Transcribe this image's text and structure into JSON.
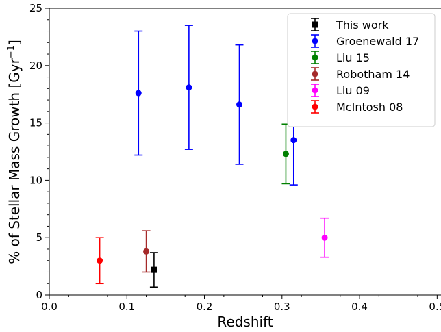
{
  "chart_data": {
    "type": "scatter",
    "xlabel": "Redshift",
    "ylabel": "% of Stellar Mass Growth [Gyr",
    "ylabel_sup": "−1",
    "ylabel_close": "]",
    "xlim": [
      0.0,
      0.5
    ],
    "ylim": [
      0,
      25
    ],
    "xticks": [
      0.0,
      0.1,
      0.2,
      0.3,
      0.4,
      0.5
    ],
    "xtick_labels": [
      "0.0",
      "0.1",
      "0.2",
      "0.3",
      "0.4",
      "0.5"
    ],
    "yticks": [
      0,
      5,
      10,
      15,
      20,
      25
    ],
    "ytick_labels": [
      "0",
      "5",
      "10",
      "15",
      "20",
      "25"
    ],
    "grid": false,
    "legend_position": "top-right",
    "series": [
      {
        "name": "This work",
        "color": "#000000",
        "marker": "square",
        "points": [
          {
            "x": 0.135,
            "y": 2.2,
            "ylo": 0.7,
            "yhi": 3.7
          }
        ]
      },
      {
        "name": "Groenewald 17",
        "color": "#0000ff",
        "marker": "circle",
        "points": [
          {
            "x": 0.115,
            "y": 17.6,
            "ylo": 12.2,
            "yhi": 23.0
          },
          {
            "x": 0.18,
            "y": 18.1,
            "ylo": 12.7,
            "yhi": 23.5
          },
          {
            "x": 0.245,
            "y": 16.6,
            "ylo": 11.4,
            "yhi": 21.8
          },
          {
            "x": 0.315,
            "y": 13.5,
            "ylo": 9.6,
            "yhi": 17.5
          }
        ]
      },
      {
        "name": "Liu 15",
        "color": "#008000",
        "marker": "circle",
        "points": [
          {
            "x": 0.305,
            "y": 12.3,
            "ylo": 9.7,
            "yhi": 14.9
          }
        ]
      },
      {
        "name": "Robotham 14",
        "color": "#a52a2a",
        "marker": "circle",
        "points": [
          {
            "x": 0.125,
            "y": 3.8,
            "ylo": 2.0,
            "yhi": 5.6
          }
        ]
      },
      {
        "name": "Liu 09",
        "color": "#ff00ff",
        "marker": "circle",
        "points": [
          {
            "x": 0.355,
            "y": 5.0,
            "ylo": 3.3,
            "yhi": 6.7
          }
        ]
      },
      {
        "name": "McIntosh 08",
        "color": "#ff0000",
        "marker": "circle",
        "points": [
          {
            "x": 0.065,
            "y": 3.0,
            "ylo": 1.0,
            "yhi": 5.0
          }
        ]
      }
    ]
  }
}
